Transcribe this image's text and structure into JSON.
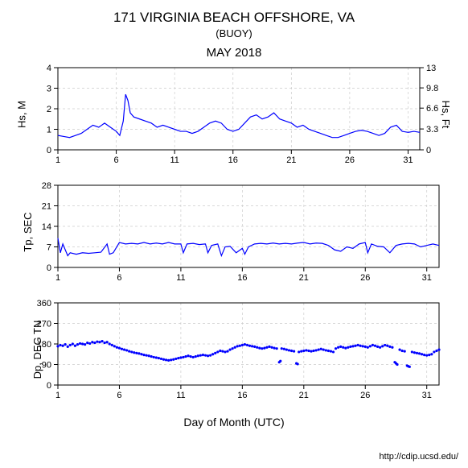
{
  "header": {
    "title": "171 VIRGINIA BEACH OFFSHORE, VA",
    "subtitle": "(BUOY)",
    "period": "MAY 2018"
  },
  "x_axis": {
    "min": 1,
    "max": 32,
    "ticks": [
      1,
      6,
      11,
      16,
      21,
      26,
      31
    ],
    "label": "Day of Month (UTC)"
  },
  "panels": [
    {
      "id": "hs",
      "type": "line",
      "ylabel_left": "Hs, M",
      "ylabel_right": "Hs, Ft",
      "ylim_left": [
        0,
        4
      ],
      "yticks_left": [
        0,
        1,
        2,
        3,
        4
      ],
      "ylim_right": [
        0,
        13
      ],
      "yticks_right": [
        0,
        3.3,
        6.6,
        9.8,
        13
      ],
      "line_color": "#0000ff",
      "grid_color": "#cccccc",
      "box_color": "#000000",
      "background": "#ffffff",
      "data": [
        [
          1,
          0.7
        ],
        [
          1.5,
          0.65
        ],
        [
          2,
          0.6
        ],
        [
          2.5,
          0.7
        ],
        [
          3,
          0.8
        ],
        [
          3.5,
          1.0
        ],
        [
          4,
          1.2
        ],
        [
          4.5,
          1.1
        ],
        [
          5,
          1.3
        ],
        [
          5.5,
          1.1
        ],
        [
          6,
          0.9
        ],
        [
          6.3,
          0.7
        ],
        [
          6.6,
          1.4
        ],
        [
          6.8,
          2.7
        ],
        [
          7,
          2.4
        ],
        [
          7.2,
          1.8
        ],
        [
          7.5,
          1.6
        ],
        [
          8,
          1.5
        ],
        [
          8.5,
          1.4
        ],
        [
          9,
          1.3
        ],
        [
          9.5,
          1.1
        ],
        [
          10,
          1.2
        ],
        [
          10.5,
          1.1
        ],
        [
          11,
          1.0
        ],
        [
          11.5,
          0.9
        ],
        [
          12,
          0.9
        ],
        [
          12.5,
          0.8
        ],
        [
          13,
          0.9
        ],
        [
          13.5,
          1.1
        ],
        [
          14,
          1.3
        ],
        [
          14.5,
          1.4
        ],
        [
          15,
          1.3
        ],
        [
          15.5,
          1.0
        ],
        [
          16,
          0.9
        ],
        [
          16.5,
          1.0
        ],
        [
          17,
          1.3
        ],
        [
          17.5,
          1.6
        ],
        [
          18,
          1.7
        ],
        [
          18.5,
          1.5
        ],
        [
          19,
          1.6
        ],
        [
          19.5,
          1.8
        ],
        [
          20,
          1.5
        ],
        [
          20.5,
          1.4
        ],
        [
          21,
          1.3
        ],
        [
          21.5,
          1.1
        ],
        [
          22,
          1.2
        ],
        [
          22.5,
          1.0
        ],
        [
          23,
          0.9
        ],
        [
          23.5,
          0.8
        ],
        [
          24,
          0.7
        ],
        [
          24.5,
          0.6
        ],
        [
          25,
          0.6
        ],
        [
          25.5,
          0.7
        ],
        [
          26,
          0.8
        ],
        [
          26.5,
          0.9
        ],
        [
          27,
          0.95
        ],
        [
          27.5,
          0.9
        ],
        [
          28,
          0.8
        ],
        [
          28.5,
          0.7
        ],
        [
          29,
          0.8
        ],
        [
          29.5,
          1.1
        ],
        [
          30,
          1.2
        ],
        [
          30.5,
          0.9
        ],
        [
          31,
          0.85
        ],
        [
          31.5,
          0.9
        ],
        [
          32,
          0.85
        ]
      ]
    },
    {
      "id": "tp",
      "type": "line",
      "ylabel_left": "Tp, SEC",
      "ylim_left": [
        0,
        28
      ],
      "yticks_left": [
        0,
        7,
        14,
        21,
        28
      ],
      "line_color": "#0000ff",
      "grid_color": "#cccccc",
      "box_color": "#000000",
      "background": "#ffffff",
      "data": [
        [
          1,
          10
        ],
        [
          1.2,
          5
        ],
        [
          1.4,
          8
        ],
        [
          1.8,
          4
        ],
        [
          2,
          5
        ],
        [
          2.5,
          4.5
        ],
        [
          3,
          5
        ],
        [
          3.5,
          4.8
        ],
        [
          4,
          5
        ],
        [
          4.5,
          5.2
        ],
        [
          5,
          8
        ],
        [
          5.2,
          4.5
        ],
        [
          5.5,
          5
        ],
        [
          6,
          8.5
        ],
        [
          6.5,
          8
        ],
        [
          7,
          8.2
        ],
        [
          7.5,
          8
        ],
        [
          8,
          8.5
        ],
        [
          8.5,
          8
        ],
        [
          9,
          8.3
        ],
        [
          9.5,
          8
        ],
        [
          10,
          8.5
        ],
        [
          10.5,
          8
        ],
        [
          11,
          8
        ],
        [
          11.2,
          5
        ],
        [
          11.5,
          8
        ],
        [
          12,
          8.2
        ],
        [
          12.5,
          7.8
        ],
        [
          13,
          8
        ],
        [
          13.2,
          5
        ],
        [
          13.5,
          7.5
        ],
        [
          14,
          8
        ],
        [
          14.3,
          4
        ],
        [
          14.6,
          7
        ],
        [
          15,
          7.2
        ],
        [
          15.5,
          5
        ],
        [
          16,
          6.5
        ],
        [
          16.2,
          4.5
        ],
        [
          16.5,
          7
        ],
        [
          17,
          8
        ],
        [
          17.5,
          8.2
        ],
        [
          18,
          8
        ],
        [
          18.5,
          8.3
        ],
        [
          19,
          8
        ],
        [
          19.5,
          8.2
        ],
        [
          20,
          8
        ],
        [
          20.5,
          8.3
        ],
        [
          21,
          8.5
        ],
        [
          21.5,
          8
        ],
        [
          22,
          8.3
        ],
        [
          22.5,
          8.2
        ],
        [
          23,
          7.5
        ],
        [
          23.5,
          6
        ],
        [
          24,
          5.5
        ],
        [
          24.5,
          7
        ],
        [
          25,
          6.5
        ],
        [
          25.5,
          8
        ],
        [
          26,
          8.5
        ],
        [
          26.2,
          5
        ],
        [
          26.5,
          8
        ],
        [
          27,
          7.2
        ],
        [
          27.5,
          7
        ],
        [
          28,
          5
        ],
        [
          28.5,
          7.5
        ],
        [
          29,
          8
        ],
        [
          29.5,
          8.2
        ],
        [
          30,
          8
        ],
        [
          30.5,
          7
        ],
        [
          31,
          7.5
        ],
        [
          31.5,
          8
        ],
        [
          32,
          7.5
        ]
      ]
    },
    {
      "id": "dp",
      "type": "scatter",
      "ylabel_left": "Dp, DEG TN",
      "ylim_left": [
        0,
        360
      ],
      "yticks_left": [
        0,
        90,
        180,
        270,
        360
      ],
      "marker_color": "#0000ff",
      "marker_size": 1.6,
      "grid_color": "#cccccc",
      "box_color": "#000000",
      "background": "#ffffff",
      "data": [
        [
          1,
          170
        ],
        [
          1.2,
          175
        ],
        [
          1.4,
          172
        ],
        [
          1.6,
          178
        ],
        [
          1.8,
          168
        ],
        [
          2,
          175
        ],
        [
          2.2,
          180
        ],
        [
          2.4,
          172
        ],
        [
          2.6,
          178
        ],
        [
          2.8,
          182
        ],
        [
          3,
          180
        ],
        [
          3.2,
          178
        ],
        [
          3.4,
          185
        ],
        [
          3.6,
          182
        ],
        [
          3.8,
          188
        ],
        [
          4,
          185
        ],
        [
          4.2,
          190
        ],
        [
          4.4,
          188
        ],
        [
          4.6,
          192
        ],
        [
          4.8,
          185
        ],
        [
          5,
          188
        ],
        [
          5.2,
          180
        ],
        [
          5.4,
          175
        ],
        [
          5.6,
          170
        ],
        [
          5.8,
          165
        ],
        [
          6,
          162
        ],
        [
          6.2,
          158
        ],
        [
          6.4,
          155
        ],
        [
          6.6,
          152
        ],
        [
          6.8,
          148
        ],
        [
          7,
          145
        ],
        [
          7.2,
          142
        ],
        [
          7.4,
          140
        ],
        [
          7.6,
          138
        ],
        [
          7.8,
          135
        ],
        [
          8,
          132
        ],
        [
          8.2,
          130
        ],
        [
          8.4,
          128
        ],
        [
          8.6,
          125
        ],
        [
          8.8,
          122
        ],
        [
          9,
          120
        ],
        [
          9.2,
          118
        ],
        [
          9.4,
          115
        ],
        [
          9.6,
          112
        ],
        [
          9.8,
          110
        ],
        [
          10,
          108
        ],
        [
          10.2,
          110
        ],
        [
          10.4,
          112
        ],
        [
          10.6,
          115
        ],
        [
          10.8,
          118
        ],
        [
          11,
          120
        ],
        [
          11.2,
          122
        ],
        [
          11.4,
          125
        ],
        [
          11.6,
          128
        ],
        [
          11.8,
          125
        ],
        [
          12,
          122
        ],
        [
          12.2,
          125
        ],
        [
          12.4,
          128
        ],
        [
          12.6,
          130
        ],
        [
          12.8,
          132
        ],
        [
          13,
          130
        ],
        [
          13.2,
          128
        ],
        [
          13.4,
          130
        ],
        [
          13.6,
          135
        ],
        [
          13.8,
          140
        ],
        [
          14,
          145
        ],
        [
          14.2,
          150
        ],
        [
          14.4,
          148
        ],
        [
          14.6,
          145
        ],
        [
          14.8,
          148
        ],
        [
          15,
          155
        ],
        [
          15.2,
          160
        ],
        [
          15.4,
          165
        ],
        [
          15.6,
          170
        ],
        [
          15.8,
          172
        ],
        [
          16,
          175
        ],
        [
          16.2,
          178
        ],
        [
          16.4,
          175
        ],
        [
          16.6,
          172
        ],
        [
          16.8,
          170
        ],
        [
          17,
          168
        ],
        [
          17.2,
          165
        ],
        [
          17.4,
          162
        ],
        [
          17.6,
          160
        ],
        [
          17.8,
          162
        ],
        [
          18,
          165
        ],
        [
          18.2,
          168
        ],
        [
          18.4,
          165
        ],
        [
          18.6,
          162
        ],
        [
          18.8,
          160
        ],
        [
          19,
          100
        ],
        [
          19.1,
          105
        ],
        [
          19.2,
          160
        ],
        [
          19.4,
          158
        ],
        [
          19.6,
          155
        ],
        [
          19.8,
          152
        ],
        [
          20,
          150
        ],
        [
          20.2,
          148
        ],
        [
          20.4,
          95
        ],
        [
          20.5,
          92
        ],
        [
          20.6,
          145
        ],
        [
          20.8,
          148
        ],
        [
          21,
          150
        ],
        [
          21.2,
          152
        ],
        [
          21.4,
          150
        ],
        [
          21.6,
          148
        ],
        [
          21.8,
          150
        ],
        [
          22,
          152
        ],
        [
          22.2,
          155
        ],
        [
          22.4,
          158
        ],
        [
          22.6,
          155
        ],
        [
          22.8,
          152
        ],
        [
          23,
          150
        ],
        [
          23.2,
          148
        ],
        [
          23.4,
          145
        ],
        [
          23.6,
          160
        ],
        [
          23.8,
          165
        ],
        [
          24,
          168
        ],
        [
          24.2,
          165
        ],
        [
          24.4,
          162
        ],
        [
          24.6,
          165
        ],
        [
          24.8,
          168
        ],
        [
          25,
          170
        ],
        [
          25.2,
          172
        ],
        [
          25.4,
          175
        ],
        [
          25.6,
          172
        ],
        [
          25.8,
          170
        ],
        [
          26,
          168
        ],
        [
          26.2,
          165
        ],
        [
          26.4,
          170
        ],
        [
          26.6,
          175
        ],
        [
          26.8,
          172
        ],
        [
          27,
          168
        ],
        [
          27.2,
          165
        ],
        [
          27.4,
          170
        ],
        [
          27.6,
          175
        ],
        [
          27.8,
          172
        ],
        [
          28,
          168
        ],
        [
          28.2,
          165
        ],
        [
          28.4,
          100
        ],
        [
          28.5,
          95
        ],
        [
          28.6,
          90
        ],
        [
          28.8,
          155
        ],
        [
          29,
          150
        ],
        [
          29.2,
          148
        ],
        [
          29.4,
          85
        ],
        [
          29.5,
          82
        ],
        [
          29.6,
          80
        ],
        [
          29.8,
          145
        ],
        [
          30,
          142
        ],
        [
          30.2,
          140
        ],
        [
          30.4,
          138
        ],
        [
          30.6,
          135
        ],
        [
          30.8,
          132
        ],
        [
          31,
          130
        ],
        [
          31.2,
          132
        ],
        [
          31.4,
          135
        ],
        [
          31.6,
          145
        ],
        [
          31.8,
          150
        ],
        [
          32,
          155
        ]
      ]
    }
  ],
  "credit": "http://cdip.ucsd.edu/"
}
